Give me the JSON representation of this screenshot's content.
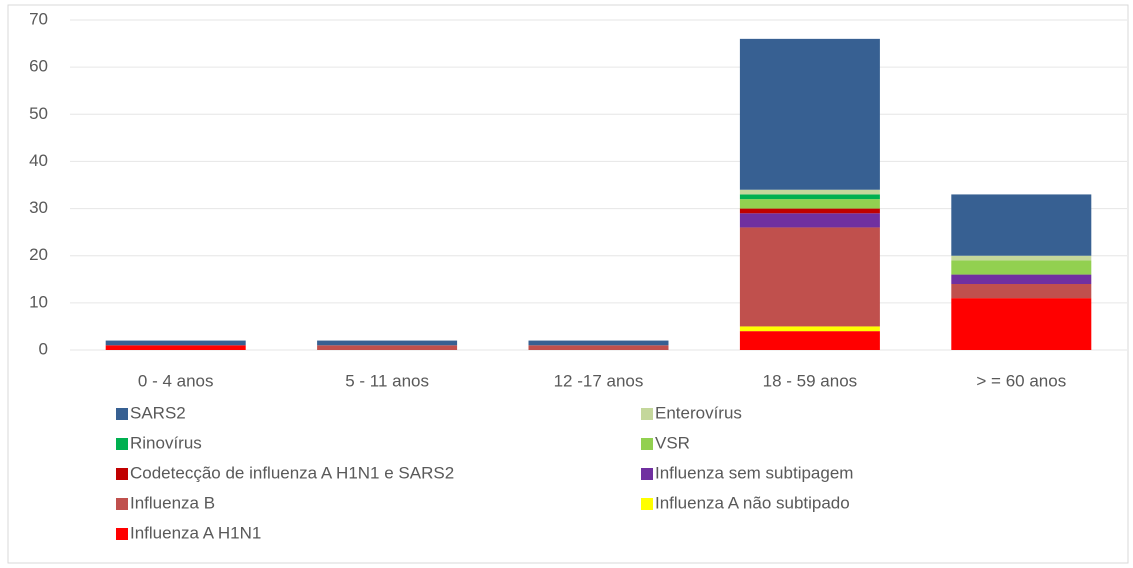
{
  "chart_data": {
    "type": "bar",
    "stacked": true,
    "categories": [
      "0 - 4  anos",
      "5 - 11 anos",
      "12 -17 anos",
      "18 - 59 anos",
      "> = 60 anos"
    ],
    "series": [
      {
        "name": "Influenza A H1N1",
        "color": "#ff0000",
        "values": [
          1,
          0,
          0,
          4,
          11
        ]
      },
      {
        "name": "Influenza A não subtipado",
        "color": "#ffff00",
        "values": [
          0,
          0,
          0,
          1,
          0
        ]
      },
      {
        "name": "Influenza B",
        "color": "#c0504d",
        "values": [
          0,
          1,
          1,
          21,
          3
        ]
      },
      {
        "name": "Influenza sem subtipagem",
        "color": "#7030a0",
        "values": [
          0,
          0,
          0,
          3,
          2
        ]
      },
      {
        "name": "Codetecção de influenza A H1N1 e SARS2",
        "color": "#c00000",
        "values": [
          0,
          0,
          0,
          1,
          0
        ]
      },
      {
        "name": "VSR",
        "color": "#92d050",
        "values": [
          0,
          0,
          0,
          2,
          3
        ]
      },
      {
        "name": "Rinovírus",
        "color": "#00b050",
        "values": [
          0,
          0,
          0,
          1,
          0
        ]
      },
      {
        "name": "Enterovírus",
        "color": "#c4d79b",
        "values": [
          0,
          0,
          0,
          1,
          1
        ]
      },
      {
        "name": "SARS2",
        "color": "#376092",
        "values": [
          1,
          1,
          1,
          32,
          13
        ]
      }
    ],
    "ylim": [
      0,
      70
    ],
    "yticks": [
      0,
      10,
      20,
      30,
      40,
      50,
      60,
      70
    ],
    "grid": true
  }
}
